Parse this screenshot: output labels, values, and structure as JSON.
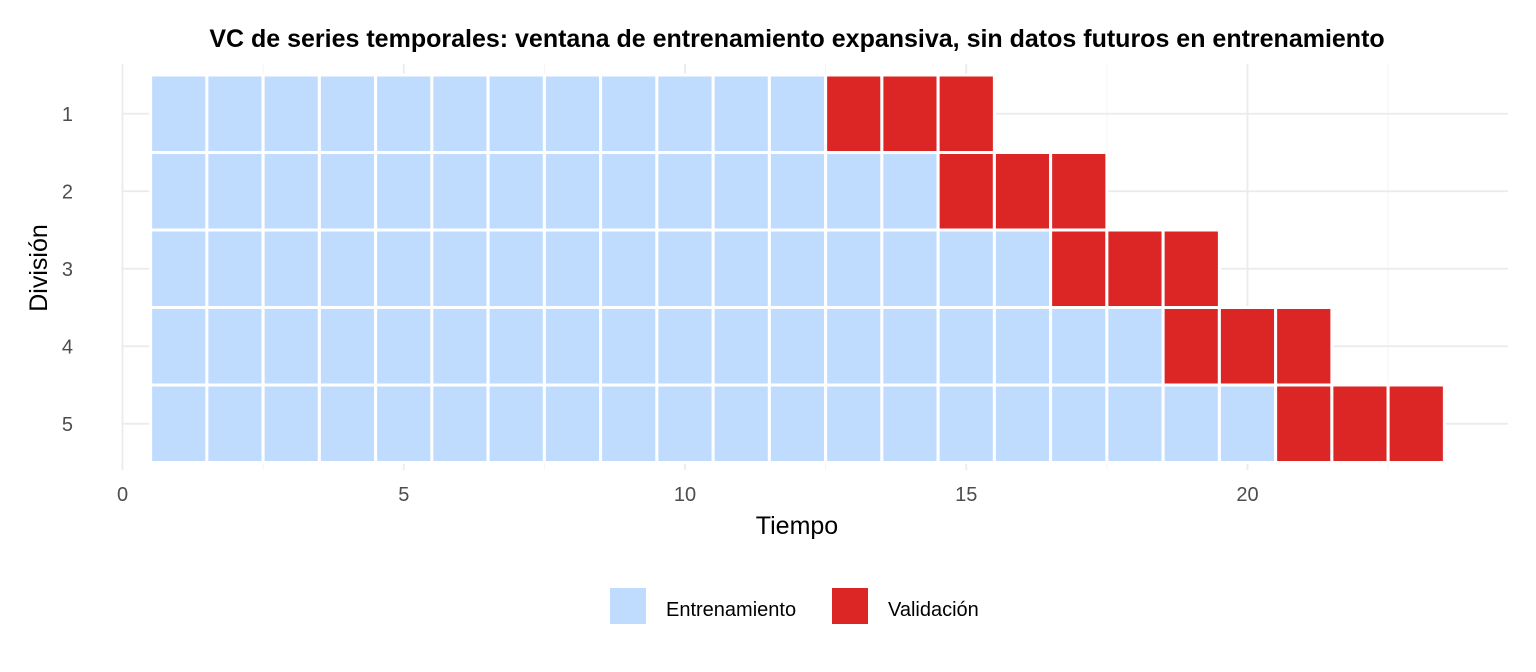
{
  "chart_data": {
    "type": "heatmap",
    "title": "VC de series temporales: ventana de entrenamiento expansiva, sin datos futuros en entrenamiento",
    "xlabel": "Tiempo",
    "ylabel": "División",
    "xlim": [
      0,
      24
    ],
    "x_ticks": [
      0,
      5,
      10,
      15,
      20
    ],
    "x_tick_labels": [
      "0",
      "5",
      "10",
      "15",
      "20"
    ],
    "y_categories": [
      "1",
      "2",
      "3",
      "4",
      "5"
    ],
    "grid": true,
    "legend_position": "bottom",
    "legend": [
      {
        "label": "Entrenamiento",
        "color": "#bfdbfe"
      },
      {
        "label": "Validación",
        "color": "#dc2626"
      }
    ],
    "series": [
      {
        "name": "Entrenamiento",
        "color": "#bfdbfe"
      },
      {
        "name": "Validación",
        "color": "#dc2626"
      }
    ],
    "folds": [
      {
        "split": "1",
        "train_times": [
          1,
          2,
          3,
          4,
          5,
          6,
          7,
          8,
          9,
          10,
          11,
          12
        ],
        "validation_times": [
          13,
          14,
          15
        ]
      },
      {
        "split": "2",
        "train_times": [
          1,
          2,
          3,
          4,
          5,
          6,
          7,
          8,
          9,
          10,
          11,
          12,
          13,
          14
        ],
        "validation_times": [
          15,
          16,
          17
        ]
      },
      {
        "split": "3",
        "train_times": [
          1,
          2,
          3,
          4,
          5,
          6,
          7,
          8,
          9,
          10,
          11,
          12,
          13,
          14,
          15,
          16
        ],
        "validation_times": [
          17,
          18,
          19
        ]
      },
      {
        "split": "4",
        "train_times": [
          1,
          2,
          3,
          4,
          5,
          6,
          7,
          8,
          9,
          10,
          11,
          12,
          13,
          14,
          15,
          16,
          17,
          18
        ],
        "validation_times": [
          19,
          20,
          21
        ]
      },
      {
        "split": "5",
        "train_times": [
          1,
          2,
          3,
          4,
          5,
          6,
          7,
          8,
          9,
          10,
          11,
          12,
          13,
          14,
          15,
          16,
          17,
          18,
          19,
          20
        ],
        "validation_times": [
          21,
          22,
          23
        ]
      }
    ]
  }
}
